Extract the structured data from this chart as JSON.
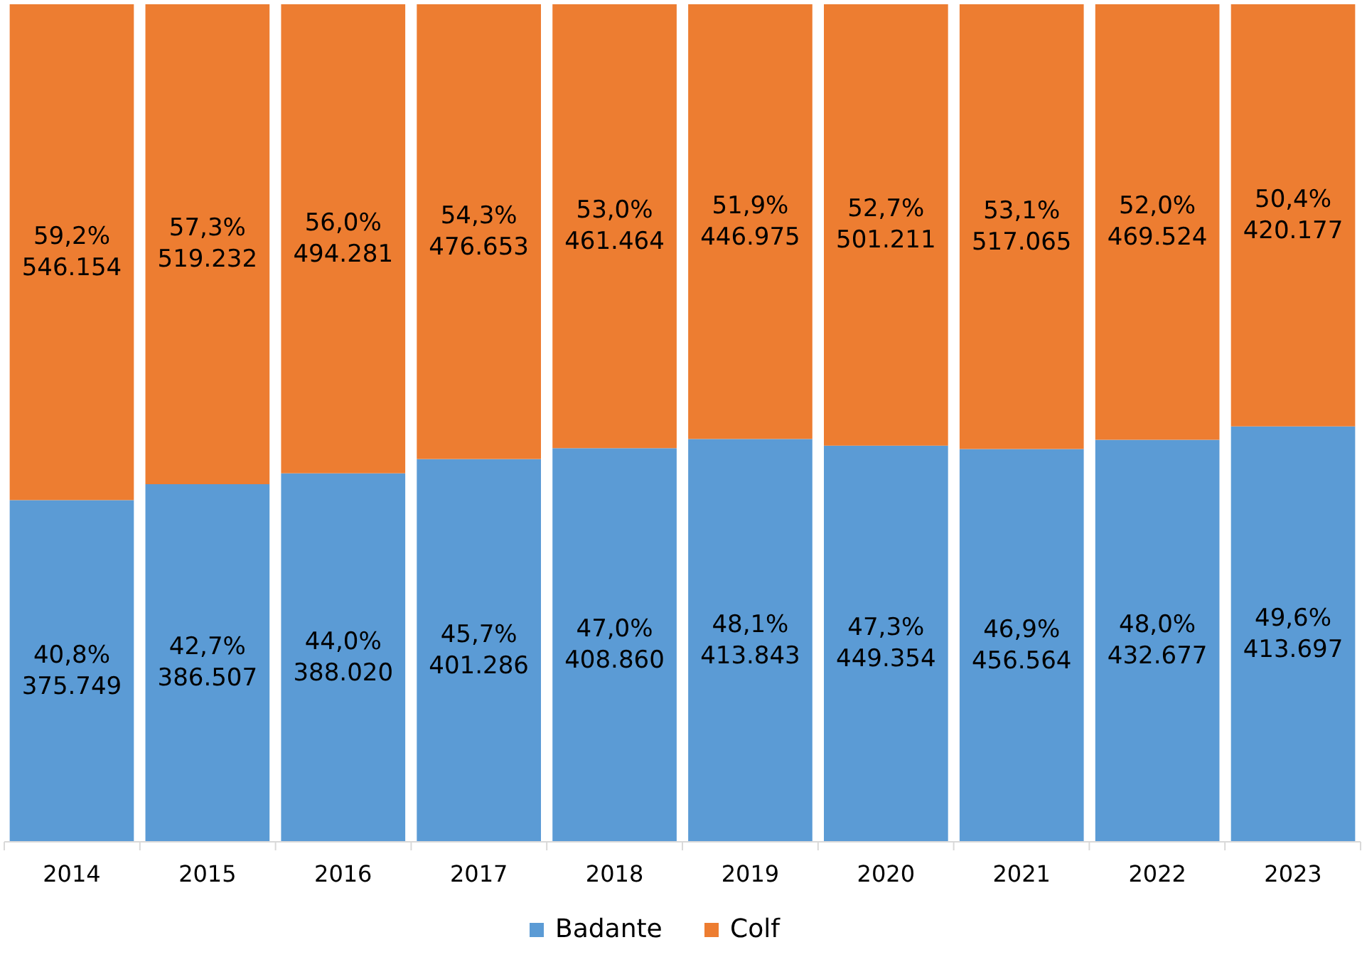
{
  "chart_data": {
    "type": "bar",
    "stacked": true,
    "categories": [
      "2014",
      "2015",
      "2016",
      "2017",
      "2018",
      "2019",
      "2020",
      "2021",
      "2022",
      "2023"
    ],
    "series": [
      {
        "name": "Badante",
        "color": "#5b9bd5",
        "values": [
          40.8,
          42.7,
          44.0,
          45.7,
          47.0,
          48.1,
          47.3,
          46.9,
          48.0,
          49.6
        ],
        "value_labels": [
          "40,8%\n375.749",
          "42,7%\n386.507",
          "44,0%\n388.020",
          "45,7%\n401.286",
          "47,0%\n408.860",
          "48,1%\n413.843",
          "47,3%\n449.354",
          "46,9%\n456.564",
          "48,0%\n432.677",
          "49,6%\n413.697"
        ]
      },
      {
        "name": "Colf",
        "color": "#ed7d31",
        "values": [
          59.2,
          57.3,
          56.0,
          54.3,
          53.0,
          51.9,
          52.7,
          53.1,
          52.0,
          50.4
        ],
        "value_labels": [
          "59,2%\n546.154",
          "57,3%\n519.232",
          "56,0%\n494.281",
          "54,3%\n476.653",
          "53,0%\n461.464",
          "51,9%\n446.975",
          "52,7%\n501.211",
          "53,1%\n517.065",
          "52,0%\n469.524",
          "50,4%\n420.177"
        ]
      }
    ],
    "legend": "bottom"
  }
}
